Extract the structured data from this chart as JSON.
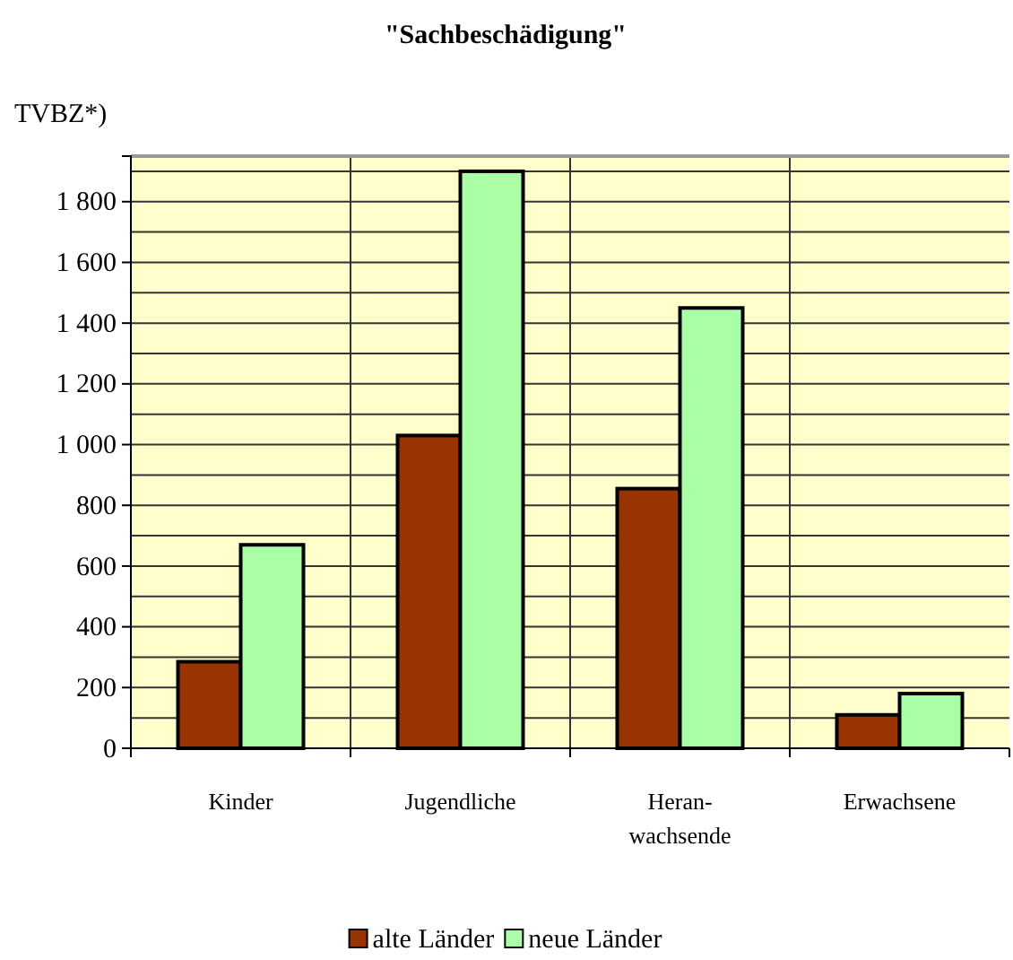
{
  "chart_data": {
    "type": "bar",
    "title": "\"Sachbeschädigung\"",
    "ylabel": "TVBZ*)",
    "categories": [
      "Kinder",
      "Jugendliche",
      "Heran-\nwachsende",
      "Erwachsene"
    ],
    "series": [
      {
        "name": "alte Länder",
        "color": "#993300",
        "values": [
          285,
          1030,
          855,
          110
        ]
      },
      {
        "name": "neue Länder",
        "color": "#aaffa6",
        "values": [
          670,
          1900,
          1450,
          180
        ]
      }
    ],
    "ylim": [
      0,
      1950
    ],
    "yticks": [
      0,
      {
        "value": 100,
        "label": null
      },
      {
        "value": 200,
        "label": "200"
      },
      {
        "value": 300,
        "label": null
      },
      {
        "value": 400,
        "label": "400"
      },
      {
        "value": 500,
        "label": null
      },
      {
        "value": 600,
        "label": "600"
      },
      {
        "value": 700,
        "label": null
      },
      {
        "value": 800,
        "label": "800"
      },
      {
        "value": 900,
        "label": null
      },
      {
        "value": 1000,
        "label": "1 000"
      },
      {
        "value": 1100,
        "label": null
      },
      {
        "value": 1200,
        "label": "1 200"
      },
      {
        "value": 1300,
        "label": null
      },
      {
        "value": 1400,
        "label": "1 400"
      },
      {
        "value": 1500,
        "label": null
      },
      {
        "value": 1600,
        "label": "1 600"
      },
      {
        "value": 1700,
        "label": null
      },
      {
        "value": 1800,
        "label": "1 800"
      },
      {
        "value": 1900,
        "label": null
      }
    ],
    "grid": true,
    "legend": "bottom"
  }
}
